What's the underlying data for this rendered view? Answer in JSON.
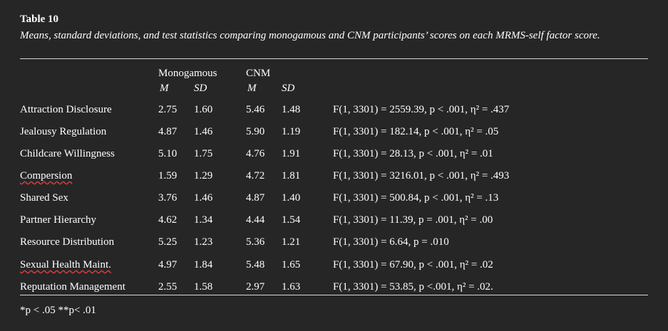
{
  "table": {
    "title": "Table 10",
    "caption": "Means, standard deviations, and test statistics comparing monogamous and CNM participants’ scores on each MRMS-self factor score.",
    "group1": "Monogamous",
    "group2": "CNM",
    "m_label": "M",
    "sd_label": "SD",
    "rows": [
      {
        "label": "Attraction Disclosure",
        "m1": "2.75",
        "sd1": "1.60",
        "m2": "5.46",
        "sd2": "1.48",
        "stat": "F(1, 3301) = 2559.39, p < .001, η² = .437"
      },
      {
        "label": "Jealousy Regulation",
        "m1": "4.87",
        "sd1": "1.46",
        "m2": "5.90",
        "sd2": "1.19",
        "stat": "F(1, 3301) = 182.14, p < .001, η² = .05"
      },
      {
        "label": "Childcare Willingness",
        "m1": "5.10",
        "sd1": "1.75",
        "m2": "4.76",
        "sd2": "1.91",
        "stat": "F(1, 3301) = 28.13, p < .001, η² = .01"
      },
      {
        "label": "Compersion",
        "m1": "1.59",
        "sd1": "1.29",
        "m2": "4.72",
        "sd2": "1.81",
        "stat": "F(1, 3301) = 3216.01, p < .001, η² = .493"
      },
      {
        "label": "Shared Sex",
        "m1": "3.76",
        "sd1": "1.46",
        "m2": "4.87",
        "sd2": "1.40",
        "stat": "F(1, 3301) = 500.84, p < .001, η² = .13"
      },
      {
        "label": "Partner Hierarchy",
        "m1": "4.62",
        "sd1": "1.34",
        "m2": "4.44",
        "sd2": "1.54",
        "stat": "F(1, 3301) = 11.39, p = .001, η² = .00"
      },
      {
        "label": "Resource Distribution",
        "m1": "5.25",
        "sd1": "1.23",
        "m2": "5.36",
        "sd2": "1.21",
        "stat": "F(1, 3301) = 6.64, p = .010"
      },
      {
        "label": "Sexual Health Maint.",
        "m1": "4.97",
        "sd1": "1.84",
        "m2": "5.48",
        "sd2": "1.65",
        "stat": "F(1, 3301) = 67.90, p < .001, η² = .02"
      },
      {
        "label": "Reputation Management",
        "m1": "2.55",
        "sd1": "1.58",
        "m2": "2.97",
        "sd2": "1.63",
        "stat": "F(1, 3301) = 53.85, p <.001, η² = .02."
      }
    ],
    "note": "*p < .05 **p< .01"
  }
}
